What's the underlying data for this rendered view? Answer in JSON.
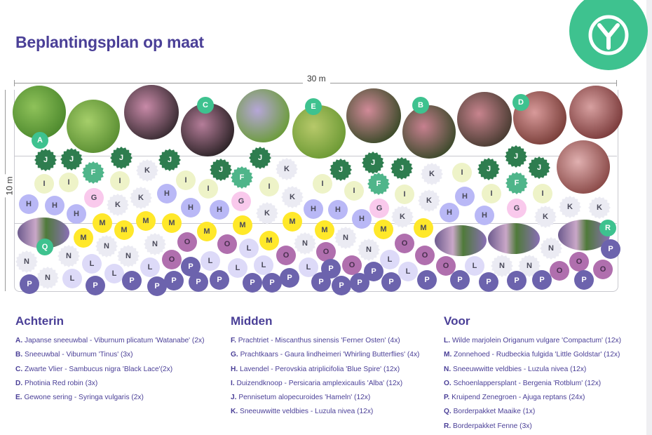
{
  "title": "Beplantingsplan op maat",
  "dimensions": {
    "width_label": "30 m",
    "depth_label": "10 m"
  },
  "colors": {
    "brand_green": "#3ec28f",
    "text_purple": "#4a3f97"
  },
  "logo_icon": "y-leaf-logo-icon",
  "zones": [
    {
      "heading": "Achterin",
      "items": [
        {
          "letter": "A",
          "key": "A.",
          "text": "Japanse sneeuwbal - Viburnum plicatum 'Watanabe' (2x)",
          "color": "#3ec28f"
        },
        {
          "letter": "B",
          "key": "B.",
          "text": "Sneeuwbal - Viburnum 'Tinus' (3x)",
          "color": "#3ec28f"
        },
        {
          "letter": "C",
          "key": "C.",
          "text": "Zwarte Vlier - Sambucus nigra 'Black Lace'(2x)",
          "color": "#3ec28f"
        },
        {
          "letter": "D",
          "key": "D.",
          "text": "Photinia Red robin (3x)",
          "color": "#3ec28f"
        },
        {
          "letter": "E",
          "key": "E.",
          "text": "Gewone sering - Syringa vulgaris (2x)",
          "color": "#3ec28f"
        }
      ]
    },
    {
      "heading": "Midden",
      "items": [
        {
          "letter": "F",
          "key": "F.",
          "text": "Prachtriet - Miscanthus sinensis 'Ferner Osten' (4x)",
          "color": "#4fb58a"
        },
        {
          "letter": "G",
          "key": "G.",
          "text": "Prachtkaars - Gaura lindheimeri 'Whirling Butterflies' (4x)",
          "color": "#f9c9ec"
        },
        {
          "letter": "H",
          "key": "H.",
          "text": "Lavendel - Perovskia atriplicifolia 'Blue Spire' (12x)",
          "color": "#b9b8f6"
        },
        {
          "letter": "I",
          "key": "I.",
          "text": "Duizendknoop - Persicaria amplexicaulis 'Alba' (12x)",
          "color": "#eef3c8"
        },
        {
          "letter": "J",
          "key": "J.",
          "text": "Pennisetum alopecuroides 'Hameln' (12x)",
          "color": "#2e7d4f"
        },
        {
          "letter": "K",
          "key": "K.",
          "text": "Sneeuwwitte veldbies - Luzula nivea (12x)",
          "color": "#ebebf3"
        }
      ]
    },
    {
      "heading": "Voor",
      "items": [
        {
          "letter": "L",
          "key": "L.",
          "text": "Wilde marjolein Origanum vulgare 'Compactum' (12x)",
          "color": "#dddaf8"
        },
        {
          "letter": "M",
          "key": "M.",
          "text": "Zonnehoed - Rudbeckia fulgida 'Little Goldstar' (12x)",
          "color": "#ffe82a"
        },
        {
          "letter": "N",
          "key": "N.",
          "text": "Sneeuwwitte veldbies - Luzula nivea (12x)",
          "color": "#ebebf3"
        },
        {
          "letter": "O",
          "key": "O.",
          "text": "Schoenlappersplant - Bergenia 'Rotblum' (12x)",
          "color": "#b06fae"
        },
        {
          "letter": "P",
          "key": "P.",
          "text": "Kruipend Zenegroen - Ajuga reptans (24x)",
          "color": "#6c63ad"
        },
        {
          "letter": "Q",
          "key": "Q.",
          "text": "Borderpakket Maaike (1x)",
          "color": "#3ec28f"
        },
        {
          "letter": "R",
          "key": "R.",
          "text": "Borderpakket Fenne (3x)",
          "color": "#3ec28f"
        }
      ]
    }
  ]
}
